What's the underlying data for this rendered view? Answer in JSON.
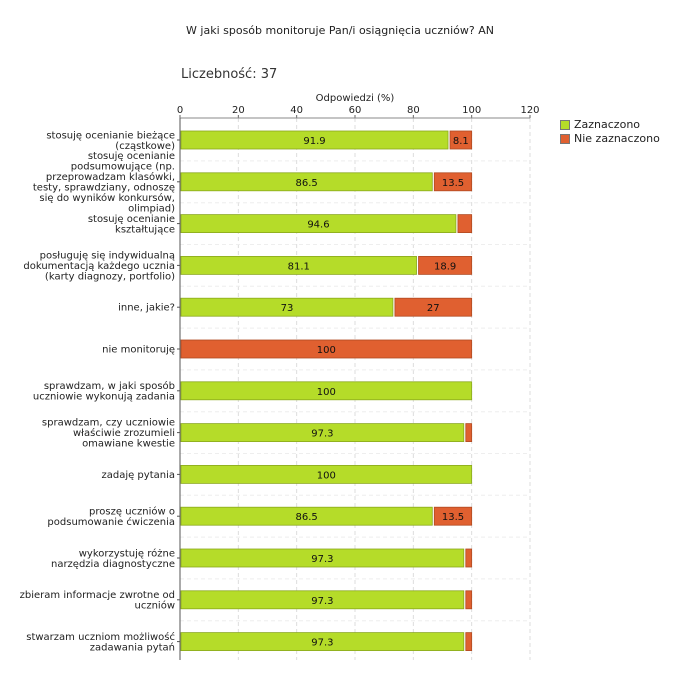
{
  "header": {
    "title": "W jaki sposób monitoruje Pan/i osiągnięcia uczniów?  AN",
    "count": "Liczebność: 37"
  },
  "chart_data": {
    "type": "bar",
    "orientation": "horizontal",
    "stacked": true,
    "title": "W jaki sposób monitoruje Pan/i osiągnięcia uczniów?  AN",
    "xlabel": "Odpowiedzi (%)",
    "ylabel": "",
    "xlim": [
      0,
      120
    ],
    "xticks": [
      0,
      20,
      40,
      60,
      80,
      100,
      120
    ],
    "grid": true,
    "legend_position": "top-right",
    "categories": [
      [
        "stosuję ocenianie bieżące",
        "(cząstkowe)"
      ],
      [
        "stosuję ocenianie",
        "podsumowujące (np.",
        "przeprowadzam klasówki,",
        "testy, sprawdziany, odnoszę",
        "się do wyników konkursów,",
        "olimpiad)"
      ],
      [
        "stosuję ocenianie",
        "kształtujące"
      ],
      [
        "posługuję się indywidualną",
        "dokumentacją każdego ucznia",
        "(karty diagnozy, portfolio)"
      ],
      [
        "inne, jakie?"
      ],
      [
        "nie monitoruję"
      ],
      [
        "sprawdzam, w jaki sposób",
        "uczniowie wykonują zadania"
      ],
      [
        "sprawdzam, czy uczniowie",
        "właściwie zrozumieli",
        "omawiane kwestie"
      ],
      [
        "zadaję pytania"
      ],
      [
        "proszę uczniów o",
        "podsumowanie ćwiczenia"
      ],
      [
        "wykorzystuję różne",
        "narzędzia diagnostyczne"
      ],
      [
        "zbieram informacje zwrotne od",
        "uczniów"
      ],
      [
        "stwarzam uczniom możliwość",
        "zadawania pytań"
      ]
    ],
    "series": [
      {
        "name": "Zaznaczono",
        "color": "#b5dc29",
        "values": [
          91.9,
          86.5,
          94.6,
          81.1,
          73,
          0,
          100,
          97.3,
          100,
          86.5,
          97.3,
          97.3,
          97.3
        ],
        "labels": [
          "91.9",
          "86.5",
          "94.6",
          "81.1",
          "73",
          "",
          "100",
          "97.3",
          "100",
          "86.5",
          "97.3",
          "97.3",
          "97.3"
        ]
      },
      {
        "name": "Nie zaznaczono",
        "color": "#e06030",
        "values": [
          8.1,
          13.5,
          5.4,
          18.9,
          27,
          100,
          0,
          2.7,
          0,
          13.5,
          2.7,
          2.7,
          2.7
        ],
        "labels": [
          "8.1",
          "13.5",
          "",
          "18.9",
          "27",
          "100",
          "",
          "",
          "",
          "13.5",
          "",
          "",
          ""
        ]
      }
    ]
  }
}
